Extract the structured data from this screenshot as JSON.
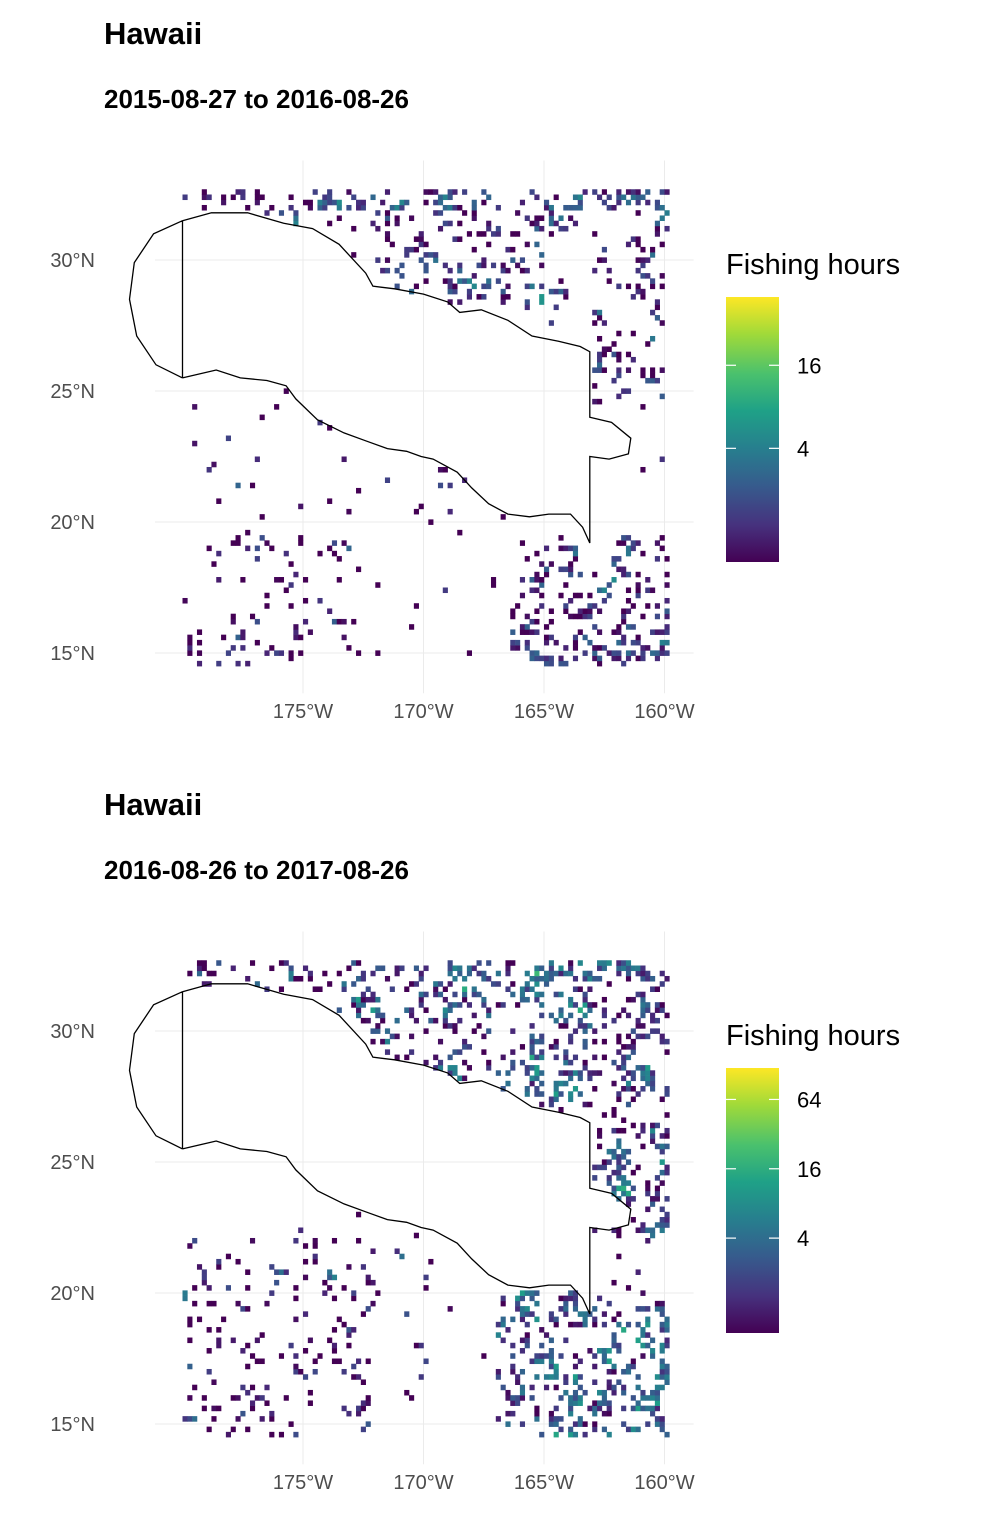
{
  "panels": [
    {
      "title": "Hawaii",
      "subtitle": "2015-08-27 to 2016-08-26",
      "legend": {
        "title": "Fishing hours",
        "breaks": [
          {
            "label": "4",
            "value": 4
          },
          {
            "label": "16",
            "value": 16
          }
        ],
        "range": [
          0.6,
          50
        ]
      },
      "chart_data": {
        "type": "heatmap",
        "xlim": [
          -180,
          -160
        ],
        "ylim": [
          14.5,
          32.5
        ],
        "x_ticks": [
          {
            "label": "175°W",
            "value": -175
          },
          {
            "label": "170°W",
            "value": -170
          },
          {
            "label": "165°W",
            "value": -165
          },
          {
            "label": "160°W",
            "value": -160
          }
        ],
        "y_ticks": [
          {
            "label": "15°N",
            "value": 15
          },
          {
            "label": "20°N",
            "value": 20
          },
          {
            "label": "25°N",
            "value": 25
          },
          {
            "label": "30°N",
            "value": 30
          }
        ],
        "fill_scale": "viridis, log",
        "grid": true,
        "eez_boundary": true
      }
    },
    {
      "title": "Hawaii",
      "subtitle": "2016-08-26 to 2017-08-26",
      "legend": {
        "title": "Fishing hours",
        "breaks": [
          {
            "label": "4",
            "value": 4
          },
          {
            "label": "16",
            "value": 16
          },
          {
            "label": "64",
            "value": 64
          }
        ],
        "range": [
          0.6,
          120
        ]
      },
      "chart_data": {
        "type": "heatmap",
        "xlim": [
          -180,
          -160
        ],
        "ylim": [
          14.5,
          32.5
        ],
        "x_ticks": [
          {
            "label": "175°W",
            "value": -175
          },
          {
            "label": "170°W",
            "value": -170
          },
          {
            "label": "165°W",
            "value": -165
          },
          {
            "label": "160°W",
            "value": -160
          }
        ],
        "y_ticks": [
          {
            "label": "15°N",
            "value": 15
          },
          {
            "label": "20°N",
            "value": 20
          },
          {
            "label": "25°N",
            "value": 25
          },
          {
            "label": "30°N",
            "value": 30
          }
        ],
        "fill_scale": "viridis, log",
        "grid": true,
        "eez_boundary": true
      }
    }
  ]
}
